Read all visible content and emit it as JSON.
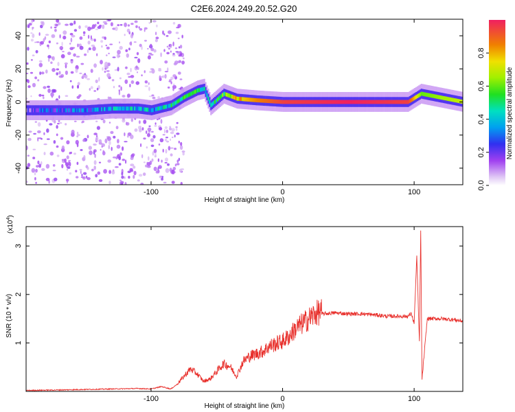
{
  "title": "C2E6.2024.249.20.52.G20",
  "chart_data": [
    {
      "type": "heatmap",
      "xlabel": "Height of straight line (km)",
      "ylabel": "Frequency (Hz)",
      "xlim": [
        -195,
        137
      ],
      "ylim": [
        -50,
        50
      ],
      "xticks": [
        -100,
        0,
        100
      ],
      "yticks": [
        -40,
        -20,
        0,
        20,
        40
      ],
      "colorbar": {
        "label": "Normalized spectral amplitude",
        "range": [
          0,
          1
        ],
        "ticks": [
          "0.0",
          "0.2",
          "0.4",
          "0.6",
          "0.8"
        ]
      },
      "ridge": [
        {
          "x": -195,
          "f": -5,
          "amp": 0.2
        },
        {
          "x": -150,
          "f": -5,
          "amp": 0.3
        },
        {
          "x": -130,
          "f": -4,
          "amp": 0.35
        },
        {
          "x": -110,
          "f": -4,
          "amp": 0.4
        },
        {
          "x": -100,
          "f": -5,
          "amp": 0.35
        },
        {
          "x": -85,
          "f": -2,
          "amp": 0.45
        },
        {
          "x": -75,
          "f": 3,
          "amp": 0.5
        },
        {
          "x": -65,
          "f": 7,
          "amp": 0.5
        },
        {
          "x": -60,
          "f": 8,
          "amp": 0.45
        },
        {
          "x": -55,
          "f": -2,
          "amp": 0.45
        },
        {
          "x": -45,
          "f": 5,
          "amp": 0.55
        },
        {
          "x": -35,
          "f": 2,
          "amp": 0.75
        },
        {
          "x": -20,
          "f": 1,
          "amp": 0.85
        },
        {
          "x": 0,
          "f": 0,
          "amp": 0.95
        },
        {
          "x": 50,
          "f": 0,
          "amp": 1.0
        },
        {
          "x": 95,
          "f": 0,
          "amp": 0.95
        },
        {
          "x": 105,
          "f": 5,
          "amp": 0.6
        },
        {
          "x": 137,
          "f": 0,
          "amp": 0.7
        }
      ]
    },
    {
      "type": "line",
      "xlabel": "Height of straight line (km)",
      "ylabel": "SNR (10 * v/v)",
      "exponent_label": "(x10",
      "exponent_power": "4",
      "exponent_close": ")",
      "xlim": [
        -195,
        137
      ],
      "ylim": [
        0,
        3.4
      ],
      "xticks": [
        -100,
        0,
        100
      ],
      "yticks": [
        1,
        2,
        3
      ],
      "color": "#e8302c",
      "series": [
        {
          "x": [
            -195,
            -170,
            -150,
            -130,
            -110,
            -100,
            -92,
            -85,
            -80,
            -75,
            -70,
            -65,
            -60,
            -55,
            -50,
            -45,
            -40,
            -35,
            -30,
            -25,
            -20,
            -15,
            -10,
            -5,
            0,
            5,
            10,
            15,
            20,
            25,
            30,
            40,
            50,
            60,
            70,
            80,
            90,
            95,
            98,
            100,
            102,
            104,
            105,
            106,
            110,
            120,
            130,
            137
          ],
          "y": [
            0.02,
            0.03,
            0.04,
            0.05,
            0.06,
            0.05,
            0.1,
            0.05,
            0.15,
            0.3,
            0.45,
            0.35,
            0.2,
            0.25,
            0.4,
            0.55,
            0.5,
            0.3,
            0.6,
            0.7,
            0.75,
            0.8,
            0.9,
            0.95,
            1.0,
            1.1,
            1.25,
            1.35,
            1.45,
            1.55,
            1.6,
            1.62,
            1.6,
            1.6,
            1.58,
            1.55,
            1.55,
            1.55,
            1.6,
            1.4,
            2.8,
            1.0,
            3.3,
            0.25,
            1.5,
            1.5,
            1.48,
            1.45
          ]
        }
      ]
    }
  ]
}
